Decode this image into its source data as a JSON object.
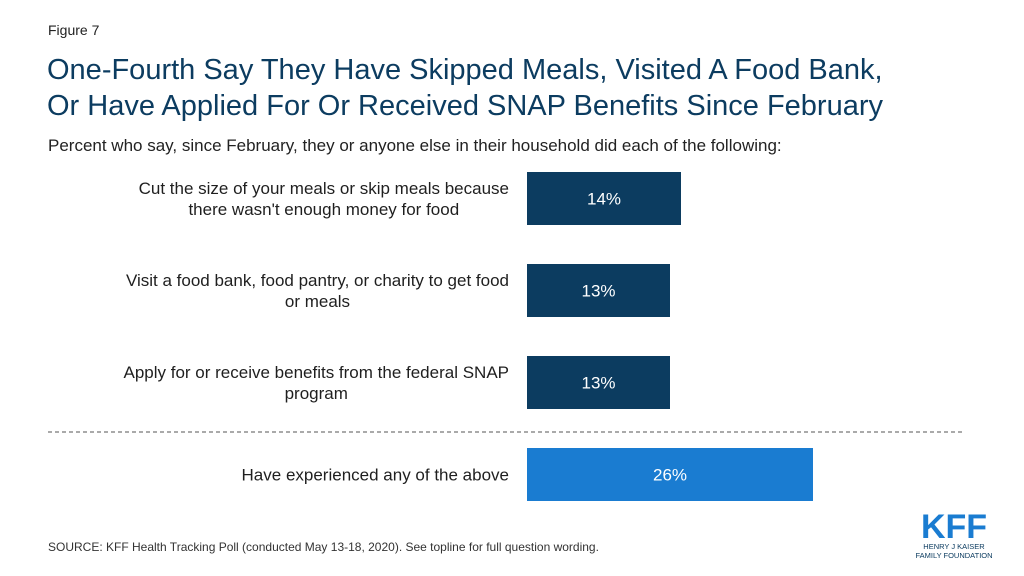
{
  "figure_label": "Figure 7",
  "title_line1": "One-Fourth Say They Have Skipped Meals, Visited A Food Bank,",
  "title_line2": "Or Have Applied For Or Received SNAP Benefits Since February",
  "subtitle": "Percent who say, since February, they or anyone else in their household did each of the following:",
  "source": "SOURCE: KFF Health Tracking Poll (conducted May 13-18, 2020). See topline for full question wording.",
  "logo": {
    "main": "KFF",
    "line1": "HENRY J KAISER",
    "line2": "FAMILY FOUNDATION"
  },
  "colors": {
    "bar_dark": "#0c3c60",
    "bar_highlight": "#1a7cd1",
    "title": "#0c3c60"
  },
  "chart_data": {
    "type": "bar",
    "orientation": "horizontal",
    "value_unit": "%",
    "categories": [
      [
        "Cut the size of your meals or skip meals because",
        "there wasn't enough money for food"
      ],
      [
        "Visit a food bank, food pantry, or charity to get food",
        "or meals"
      ],
      [
        "Apply for or receive benefits from the federal SNAP",
        "program"
      ],
      [
        "Have experienced any of the above"
      ]
    ],
    "values": [
      14,
      13,
      13,
      26
    ],
    "value_labels": [
      "14%",
      "13%",
      "13%",
      "26%"
    ],
    "highlight_index": 3,
    "separator_before_index": 3,
    "xlim": [
      0,
      100
    ],
    "grid": false,
    "legend": "none"
  }
}
